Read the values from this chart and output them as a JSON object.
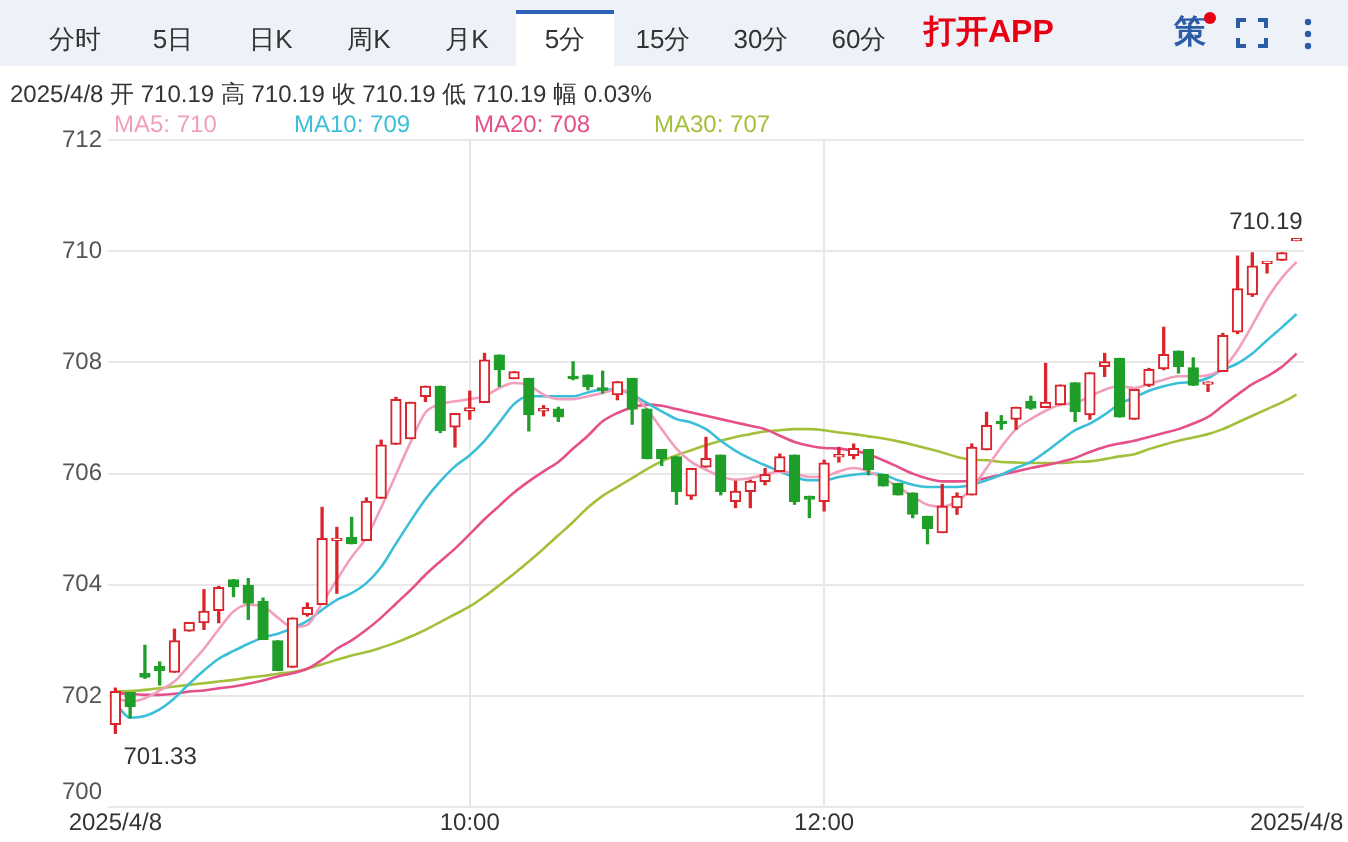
{
  "chart_data": {
    "type": "candlestick",
    "subtitle": "2025/4/8 开 710.19 高 710.19 收 710.19 低 710.19 幅 0.03%",
    "annotations": [
      "分时",
      "5日",
      "日K",
      "周K",
      "月K",
      "5分",
      "15分",
      "30分",
      "60分",
      "打开APP",
      "策",
      "701.33",
      "710.19"
    ],
    "categories": [
      "2025/4/8",
      null,
      null,
      null,
      null,
      null,
      null,
      null,
      null,
      null,
      null,
      null,
      null,
      null,
      null,
      null,
      null,
      null,
      null,
      null,
      null,
      null,
      null,
      null,
      "10:00",
      null,
      null,
      null,
      null,
      null,
      null,
      null,
      null,
      null,
      null,
      null,
      null,
      null,
      null,
      null,
      null,
      null,
      null,
      null,
      null,
      null,
      null,
      null,
      "12:00",
      null,
      null,
      null,
      null,
      null,
      null,
      null,
      null,
      null,
      null,
      null,
      null,
      null,
      null,
      null,
      null,
      null,
      null,
      null,
      null,
      null,
      null,
      null,
      null,
      null,
      null,
      null,
      null,
      null,
      null,
      null,
      "2025/4/8"
    ],
    "ohlc": [
      [
        701.49,
        702.14,
        701.33,
        702.08
      ],
      [
        702.06,
        702.06,
        701.61,
        701.81
      ],
      [
        702.4,
        702.91,
        702.32,
        702.34
      ],
      [
        702.53,
        702.61,
        702.2,
        702.46
      ],
      [
        702.43,
        703.2,
        702.43,
        702.99
      ],
      [
        703.17,
        703.32,
        703.17,
        703.32
      ],
      [
        703.32,
        703.91,
        703.2,
        703.52
      ],
      [
        703.54,
        703.97,
        703.32,
        703.95
      ],
      [
        704.09,
        704.09,
        703.79,
        703.97
      ],
      [
        703.99,
        704.11,
        703.38,
        703.67
      ],
      [
        703.7,
        703.76,
        703.02,
        703.02
      ],
      [
        702.99,
        702.99,
        702.46,
        702.46
      ],
      [
        702.52,
        703.4,
        702.52,
        703.4
      ],
      [
        703.47,
        703.67,
        703.44,
        703.59
      ],
      [
        703.65,
        705.39,
        703.65,
        704.83
      ],
      [
        704.8,
        705.03,
        703.85,
        704.83
      ],
      [
        704.85,
        705.21,
        704.74,
        704.74
      ],
      [
        704.8,
        705.56,
        704.8,
        705.5
      ],
      [
        705.56,
        706.6,
        705.56,
        706.51
      ],
      [
        706.53,
        707.37,
        706.53,
        707.33
      ],
      [
        706.63,
        707.28,
        706.63,
        707.28
      ],
      [
        707.39,
        707.57,
        707.3,
        707.57
      ],
      [
        707.57,
        707.57,
        706.74,
        706.78
      ],
      [
        706.84,
        707.08,
        706.48,
        707.08
      ],
      [
        707.13,
        707.48,
        706.98,
        707.18
      ],
      [
        707.28,
        708.16,
        707.28,
        708.04
      ],
      [
        708.13,
        708.13,
        707.57,
        707.87
      ],
      [
        707.71,
        707.83,
        707.71,
        707.83
      ],
      [
        707.71,
        707.71,
        706.77,
        707.06
      ],
      [
        707.13,
        707.22,
        707.04,
        707.17
      ],
      [
        707.16,
        707.19,
        706.94,
        707.02
      ],
      [
        707.75,
        708.01,
        707.69,
        707.71
      ],
      [
        707.77,
        707.77,
        707.51,
        707.57
      ],
      [
        707.54,
        707.84,
        707.45,
        707.5
      ],
      [
        707.42,
        707.65,
        707.33,
        707.65
      ],
      [
        707.71,
        707.71,
        706.89,
        707.16
      ],
      [
        707.16,
        707.16,
        706.27,
        706.27
      ],
      [
        706.43,
        706.43,
        706.15,
        706.27
      ],
      [
        706.3,
        706.3,
        705.45,
        705.68
      ],
      [
        705.6,
        706.09,
        705.54,
        706.09
      ],
      [
        706.12,
        706.65,
        706.12,
        706.27
      ],
      [
        706.33,
        706.33,
        705.62,
        705.68
      ],
      [
        705.5,
        705.86,
        705.39,
        705.68
      ],
      [
        705.68,
        705.88,
        705.39,
        705.86
      ],
      [
        705.86,
        706.09,
        705.8,
        705.98
      ],
      [
        706.04,
        706.35,
        706.04,
        706.3
      ],
      [
        706.33,
        706.33,
        705.45,
        705.5
      ],
      [
        705.59,
        705.59,
        705.21,
        705.54
      ],
      [
        705.5,
        706.24,
        705.33,
        706.19
      ],
      [
        706.3,
        706.47,
        706.21,
        706.34
      ],
      [
        706.33,
        706.53,
        706.27,
        706.45
      ],
      [
        706.43,
        706.43,
        705.98,
        706.07
      ],
      [
        705.98,
        705.98,
        705.78,
        705.78
      ],
      [
        705.82,
        705.82,
        705.62,
        705.62
      ],
      [
        705.65,
        705.65,
        705.21,
        705.27
      ],
      [
        705.23,
        705.23,
        704.74,
        705.01
      ],
      [
        704.94,
        705.8,
        704.94,
        705.41
      ],
      [
        705.39,
        705.65,
        705.27,
        705.59
      ],
      [
        705.62,
        706.53,
        705.62,
        706.47
      ],
      [
        706.43,
        707.1,
        706.43,
        706.86
      ],
      [
        706.94,
        707.04,
        706.8,
        706.9
      ],
      [
        706.98,
        707.19,
        706.8,
        707.19
      ],
      [
        707.3,
        707.39,
        707.16,
        707.18
      ],
      [
        707.19,
        707.98,
        707.19,
        707.28
      ],
      [
        707.24,
        707.59,
        707.24,
        707.59
      ],
      [
        707.63,
        707.63,
        706.94,
        707.12
      ],
      [
        707.06,
        707.81,
        706.98,
        707.81
      ],
      [
        707.93,
        708.16,
        707.75,
        708.01
      ],
      [
        708.07,
        708.07,
        707.02,
        707.02
      ],
      [
        706.98,
        707.51,
        706.98,
        707.51
      ],
      [
        707.59,
        707.89,
        707.57,
        707.87
      ],
      [
        707.89,
        708.63,
        707.87,
        708.14
      ],
      [
        708.2,
        708.2,
        707.81,
        707.93
      ],
      [
        707.9,
        708.08,
        707.59,
        707.59
      ],
      [
        707.61,
        707.65,
        707.48,
        707.64
      ],
      [
        707.84,
        708.52,
        707.84,
        708.48
      ],
      [
        708.55,
        709.91,
        708.52,
        709.32
      ],
      [
        709.22,
        709.97,
        709.19,
        709.73
      ],
      [
        709.78,
        709.8,
        709.61,
        709.8
      ],
      [
        709.84,
        709.97,
        709.84,
        709.97
      ],
      [
        710.19,
        710.19,
        710.19,
        710.19
      ]
    ],
    "colors": [
      "#d9252b",
      "#1f9e2a",
      "#1f9e2a",
      "#1f9e2a",
      "#d9252b",
      "#d9252b",
      "#d9252b",
      "#d9252b",
      "#1f9e2a",
      "#1f9e2a",
      "#1f9e2a",
      "#1f9e2a",
      "#d9252b",
      "#d9252b",
      "#d9252b",
      "#d9252b",
      "#1f9e2a",
      "#d9252b",
      "#d9252b",
      "#d9252b",
      "#d9252b",
      "#d9252b",
      "#1f9e2a",
      "#d9252b",
      "#d9252b",
      "#d9252b",
      "#1f9e2a",
      "#d9252b",
      "#1f9e2a",
      "#d9252b",
      "#1f9e2a",
      "#1f9e2a",
      "#1f9e2a",
      "#1f9e2a",
      "#d9252b",
      "#1f9e2a",
      "#1f9e2a",
      "#1f9e2a",
      "#1f9e2a",
      "#d9252b",
      "#d9252b",
      "#1f9e2a",
      "#d9252b",
      "#d9252b",
      "#d9252b",
      "#d9252b",
      "#1f9e2a",
      "#1f9e2a",
      "#d9252b",
      "#d9252b",
      "#d9252b",
      "#1f9e2a",
      "#1f9e2a",
      "#1f9e2a",
      "#1f9e2a",
      "#1f9e2a",
      "#d9252b",
      "#d9252b",
      "#d9252b",
      "#d9252b",
      "#1f9e2a",
      "#d9252b",
      "#1f9e2a",
      "#d9252b",
      "#d9252b",
      "#1f9e2a",
      "#d9252b",
      "#d9252b",
      "#1f9e2a",
      "#d9252b",
      "#d9252b",
      "#d9252b",
      "#1f9e2a",
      "#1f9e2a",
      "#d9252b",
      "#d9252b",
      "#d9252b",
      "#d9252b",
      "#d9252b",
      "#d9252b",
      "#d9252b"
    ],
    "series": [
      {
        "type": "line",
        "name": "MA5: 710",
        "color": "#f29ebd",
        "values": [
          701.96,
          701.9,
          701.96,
          702.1,
          702.26,
          702.55,
          702.85,
          703.2,
          703.52,
          703.64,
          703.61,
          703.41,
          703.24,
          703.28,
          703.67,
          704.09,
          704.5,
          704.85,
          705.39,
          705.98,
          706.57,
          707.1,
          707.25,
          707.3,
          707.34,
          707.39,
          707.54,
          707.63,
          707.59,
          707.42,
          707.34,
          707.34,
          707.39,
          707.45,
          707.51,
          707.42,
          707.16,
          706.8,
          706.45,
          706.21,
          706.07,
          705.95,
          705.89,
          705.92,
          705.98,
          706.04,
          706.0,
          705.94,
          705.95,
          706.04,
          706.1,
          706.04,
          705.92,
          705.76,
          705.59,
          705.44,
          705.41,
          705.5,
          705.74,
          706.1,
          706.48,
          706.8,
          706.98,
          707.13,
          707.24,
          707.27,
          707.39,
          707.51,
          707.57,
          707.54,
          707.61,
          707.69,
          707.75,
          707.75,
          707.77,
          707.89,
          708.22,
          708.67,
          709.14,
          709.52,
          709.81
        ]
      },
      {
        "type": "line",
        "name": "MA10: 709",
        "color": "#3bbfd8",
        "values": [
          701.87,
          701.61,
          701.64,
          701.76,
          701.96,
          702.22,
          702.46,
          702.67,
          702.81,
          702.94,
          703.05,
          703.12,
          703.22,
          703.35,
          703.55,
          703.73,
          703.85,
          704.03,
          704.32,
          704.74,
          705.15,
          705.54,
          705.86,
          706.13,
          706.33,
          706.59,
          706.92,
          707.25,
          707.39,
          707.39,
          707.39,
          707.39,
          707.46,
          707.51,
          707.51,
          707.42,
          707.27,
          707.12,
          706.98,
          706.92,
          706.8,
          706.59,
          706.41,
          706.27,
          706.15,
          706.04,
          705.94,
          705.88,
          705.88,
          705.94,
          705.98,
          706.0,
          705.98,
          705.88,
          705.8,
          705.76,
          705.76,
          705.76,
          705.8,
          705.88,
          705.98,
          706.1,
          706.21,
          706.39,
          706.59,
          706.78,
          706.9,
          707.06,
          707.25,
          707.37,
          707.49,
          707.57,
          707.63,
          707.65,
          707.72,
          707.87,
          707.98,
          708.16,
          708.4,
          708.63,
          708.87
        ]
      },
      {
        "type": "line",
        "name": "MA20: 708",
        "color": "#e5508a",
        "values": [
          702.05,
          702.04,
          702.02,
          702.02,
          702.04,
          702.08,
          702.1,
          702.14,
          702.17,
          702.22,
          702.28,
          702.35,
          702.41,
          702.49,
          702.65,
          702.85,
          703.0,
          703.19,
          703.41,
          703.66,
          703.91,
          704.18,
          704.42,
          704.65,
          704.91,
          705.18,
          705.42,
          705.66,
          705.86,
          706.04,
          706.21,
          706.45,
          706.68,
          706.94,
          707.09,
          707.19,
          707.24,
          707.22,
          707.16,
          707.1,
          707.04,
          706.98,
          706.92,
          706.86,
          706.8,
          706.68,
          706.57,
          706.5,
          706.46,
          706.45,
          706.41,
          706.35,
          706.24,
          706.12,
          706.0,
          705.91,
          705.86,
          705.86,
          705.87,
          705.92,
          705.98,
          706.04,
          706.1,
          706.15,
          706.21,
          706.28,
          706.39,
          706.48,
          706.54,
          706.59,
          706.66,
          706.73,
          706.8,
          706.9,
          707.02,
          707.22,
          707.42,
          707.61,
          707.75,
          707.92,
          708.16
        ]
      },
      {
        "type": "line",
        "name": "MA30: 707",
        "color": "#a3c03a",
        "values": [
          702.08,
          702.09,
          702.11,
          702.14,
          702.17,
          702.2,
          702.23,
          702.26,
          702.29,
          702.33,
          702.36,
          702.4,
          702.43,
          702.49,
          702.57,
          702.65,
          702.73,
          702.79,
          702.87,
          702.96,
          703.07,
          703.19,
          703.33,
          703.47,
          703.61,
          703.79,
          703.99,
          704.2,
          704.42,
          704.65,
          704.89,
          705.13,
          705.39,
          705.6,
          705.76,
          705.92,
          706.08,
          706.22,
          706.33,
          706.42,
          706.51,
          706.59,
          706.66,
          706.71,
          706.76,
          706.78,
          706.8,
          706.8,
          706.78,
          706.74,
          706.71,
          706.67,
          706.63,
          706.58,
          706.52,
          706.45,
          706.38,
          706.3,
          706.25,
          706.24,
          706.21,
          706.2,
          706.19,
          706.19,
          706.19,
          706.21,
          706.22,
          706.26,
          706.31,
          706.35,
          706.44,
          706.52,
          706.59,
          706.65,
          706.71,
          706.8,
          706.92,
          707.04,
          707.16,
          707.28,
          707.42
        ]
      }
    ],
    "ylim": [
      700,
      712
    ],
    "yticks": [
      700,
      702,
      704,
      706,
      708,
      710,
      712
    ],
    "grid": true,
    "legend": "top left",
    "marker": "none"
  }
}
